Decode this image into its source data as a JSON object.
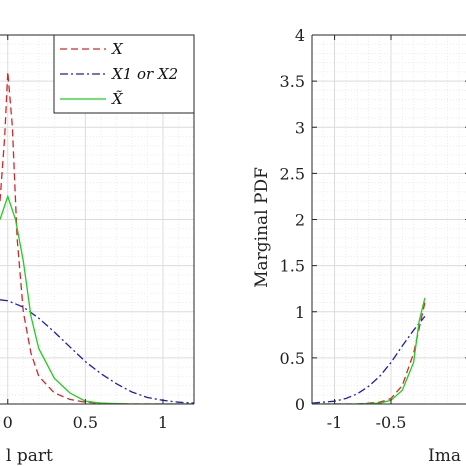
{
  "chart_data": [
    {
      "type": "line",
      "xlabel": "l part",
      "ylabel": "",
      "xlim": [
        -0.05,
        1.2
      ],
      "ylim": [
        0,
        4
      ],
      "grid": true,
      "xticks": [
        {
          "value": 0,
          "label": "0"
        },
        {
          "value": 0.5,
          "label": "0.5"
        },
        {
          "value": 1,
          "label": "1"
        }
      ],
      "legend": {
        "placement": "top-right",
        "entries": [
          {
            "label": "X",
            "color": "#d62728",
            "style": "dashed"
          },
          {
            "label": "X1 or X2",
            "color": "#1f1fb4",
            "style": "dashdot"
          },
          {
            "label": "X̃",
            "color": "#22cc22",
            "style": "solid"
          }
        ]
      },
      "series": [
        {
          "name": "X",
          "color": "#d62728",
          "style": "dashed",
          "x": [
            -0.05,
            -0.02,
            0.0,
            0.03,
            0.06,
            0.1,
            0.15,
            0.2,
            0.3,
            0.4,
            0.5,
            0.6,
            0.7,
            0.85,
            1.0,
            1.2
          ],
          "y": [
            2.2,
            2.9,
            3.6,
            3.0,
            1.8,
            1.0,
            0.55,
            0.3,
            0.12,
            0.05,
            0.02,
            0.01,
            0.0,
            0.0,
            0.0,
            0.0
          ]
        },
        {
          "name": "X1 or X2",
          "color": "#1f1fb4",
          "style": "dashdot",
          "x": [
            -0.05,
            0.0,
            0.1,
            0.2,
            0.3,
            0.4,
            0.5,
            0.6,
            0.7,
            0.8,
            0.9,
            1.0,
            1.1,
            1.2
          ],
          "y": [
            1.13,
            1.12,
            1.05,
            0.93,
            0.78,
            0.62,
            0.46,
            0.33,
            0.22,
            0.13,
            0.07,
            0.04,
            0.02,
            0.01
          ]
        },
        {
          "name": "X̃",
          "color": "#22cc22",
          "style": "solid",
          "x": [
            -0.05,
            0.0,
            0.05,
            0.1,
            0.15,
            0.2,
            0.3,
            0.4,
            0.5,
            0.6,
            0.8,
            1.0,
            1.2
          ],
          "y": [
            2.0,
            2.25,
            2.0,
            1.55,
            0.95,
            0.6,
            0.28,
            0.12,
            0.03,
            0.01,
            0.0,
            0.0,
            0.0
          ]
        }
      ]
    },
    {
      "type": "line",
      "xlabel": "Ima",
      "ylabel": "Marginal PDF",
      "xlim": [
        -1.2,
        0.2
      ],
      "ylim": [
        0,
        4
      ],
      "grid": true,
      "xticks": [
        {
          "value": -1,
          "label": "-1"
        },
        {
          "value": -0.5,
          "label": "-0.5"
        }
      ],
      "yticks": [
        {
          "value": 0,
          "label": "0"
        },
        {
          "value": 0.5,
          "label": "0.5"
        },
        {
          "value": 1,
          "label": "1"
        },
        {
          "value": 1.5,
          "label": "1.5"
        },
        {
          "value": 2,
          "label": "2"
        },
        {
          "value": 2.5,
          "label": "2.5"
        },
        {
          "value": 3,
          "label": "3"
        },
        {
          "value": 3.5,
          "label": "3.5"
        },
        {
          "value": 4,
          "label": "4"
        }
      ],
      "series": [
        {
          "name": "X",
          "color": "#d62728",
          "style": "dashed",
          "x": [
            -1.2,
            -1.0,
            -0.8,
            -0.6,
            -0.5,
            -0.4,
            -0.3,
            -0.2
          ],
          "y": [
            0.0,
            0.0,
            0.0,
            0.02,
            0.06,
            0.2,
            0.55,
            1.1
          ]
        },
        {
          "name": "X1 or X2",
          "color": "#1f1fb4",
          "style": "dashdot",
          "x": [
            -1.2,
            -1.0,
            -0.9,
            -0.8,
            -0.7,
            -0.6,
            -0.5,
            -0.4,
            -0.3,
            -0.2
          ],
          "y": [
            0.01,
            0.03,
            0.06,
            0.11,
            0.19,
            0.3,
            0.45,
            0.63,
            0.8,
            0.95
          ]
        },
        {
          "name": "X̃",
          "color": "#22cc22",
          "style": "solid",
          "x": [
            -1.2,
            -1.0,
            -0.8,
            -0.6,
            -0.5,
            -0.4,
            -0.3,
            -0.25,
            -0.2
          ],
          "y": [
            0.0,
            0.0,
            0.0,
            0.01,
            0.04,
            0.15,
            0.45,
            0.9,
            1.15
          ]
        }
      ]
    }
  ]
}
